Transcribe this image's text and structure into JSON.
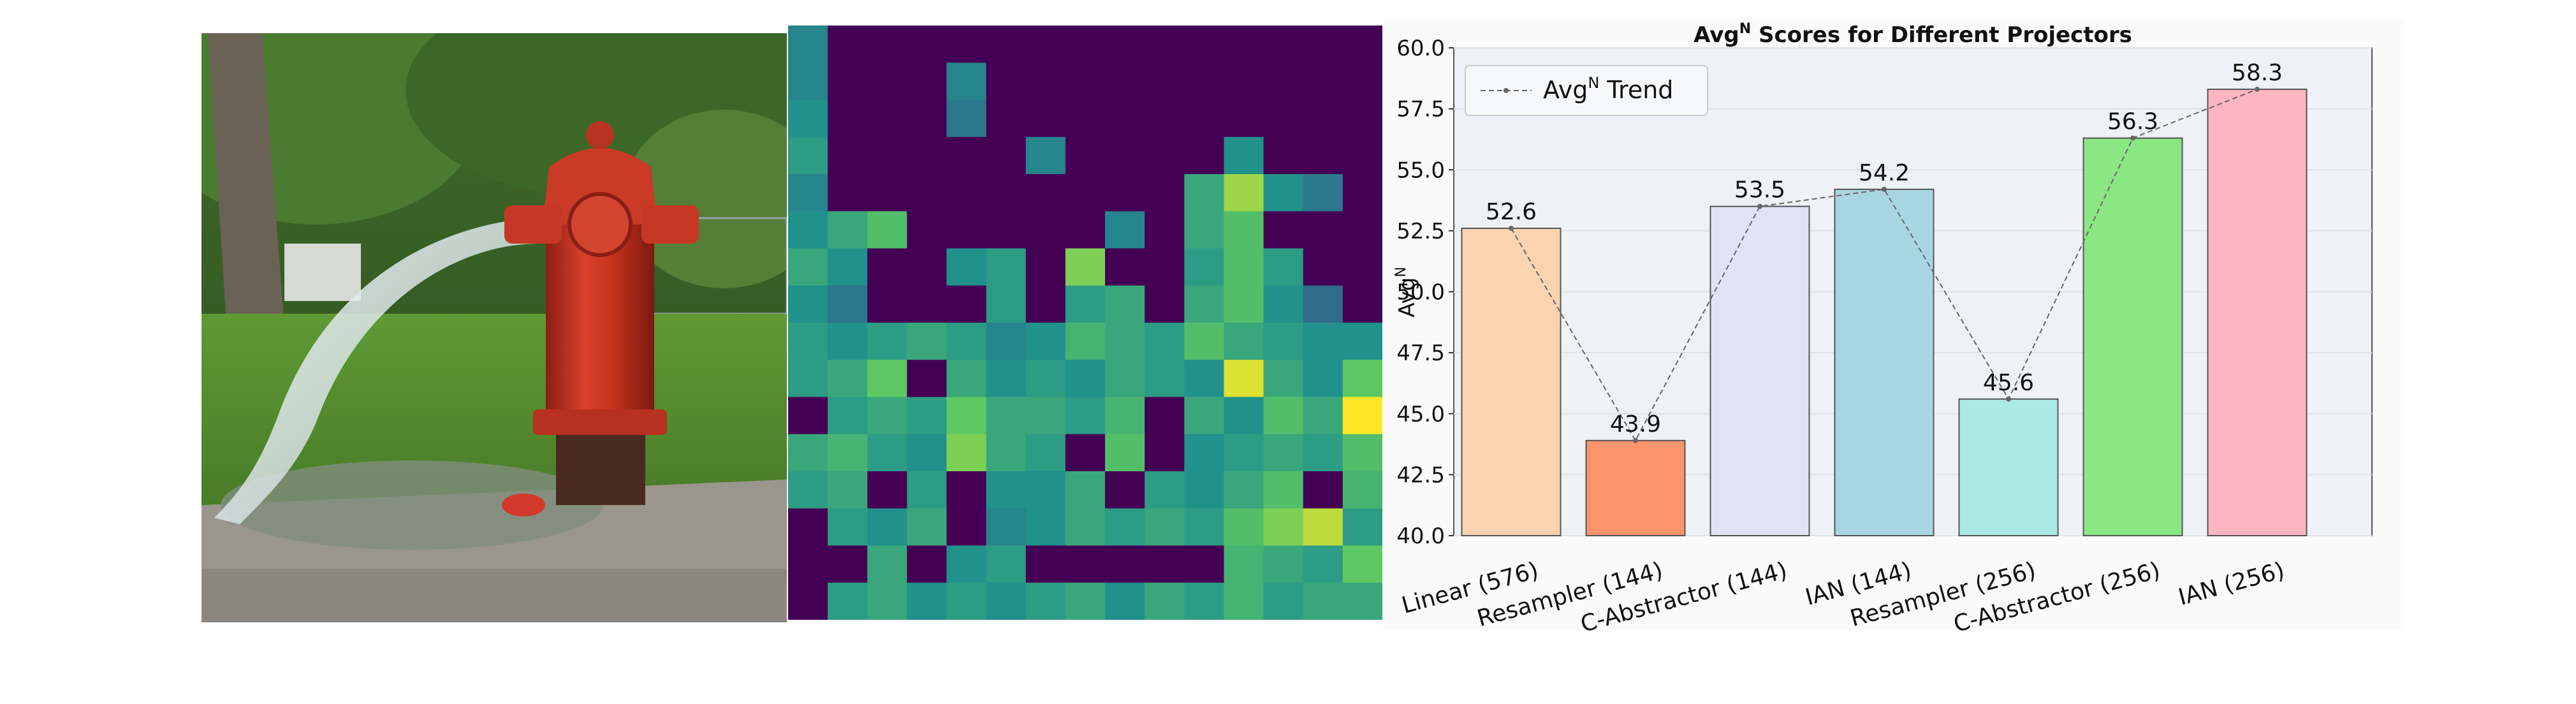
{
  "figure": {
    "photo": {
      "subject": "red fire hydrant spraying water on a lawn"
    },
    "heatmap": {
      "rows": 16,
      "cols": 15,
      "colormap": "viridis",
      "values": [
        [
          0.45,
          0,
          0,
          0,
          0,
          0,
          0,
          0,
          0,
          0,
          0,
          0,
          0,
          0,
          0
        ],
        [
          0.45,
          0,
          0,
          0,
          0.45,
          0,
          0,
          0,
          0,
          0,
          0,
          0,
          0,
          0,
          0
        ],
        [
          0.5,
          0,
          0,
          0,
          0.4,
          0,
          0,
          0,
          0,
          0,
          0,
          0,
          0,
          0,
          0
        ],
        [
          0.55,
          0,
          0,
          0,
          0,
          0,
          0.45,
          0,
          0,
          0,
          0,
          0.5,
          0,
          0,
          0
        ],
        [
          0.45,
          0,
          0,
          0,
          0,
          0,
          0,
          0,
          0,
          0,
          0.6,
          0.85,
          0.5,
          0.4,
          0
        ],
        [
          0.5,
          0.6,
          0.7,
          0,
          0,
          0,
          0,
          0,
          0.45,
          0,
          0.6,
          0.7,
          0,
          0,
          0
        ],
        [
          0.6,
          0.5,
          0,
          0,
          0.5,
          0.55,
          0,
          0.8,
          0,
          0,
          0.55,
          0.7,
          0.55,
          0,
          0
        ],
        [
          0.5,
          0.4,
          0,
          0,
          0,
          0.55,
          0,
          0.55,
          0.6,
          0,
          0.6,
          0.7,
          0.5,
          0.35,
          0
        ],
        [
          0.55,
          0.5,
          0.55,
          0.6,
          0.55,
          0.45,
          0.5,
          0.65,
          0.6,
          0.55,
          0.7,
          0.6,
          0.55,
          0.5,
          0.5
        ],
        [
          0.55,
          0.6,
          0.75,
          0,
          0.6,
          0.5,
          0.55,
          0.5,
          0.6,
          0.55,
          0.5,
          0.95,
          0.6,
          0.5,
          0.75
        ],
        [
          0,
          0.55,
          0.6,
          0.55,
          0.75,
          0.6,
          0.6,
          0.55,
          0.65,
          0,
          0.6,
          0.5,
          0.7,
          0.6,
          1.0
        ],
        [
          0.6,
          0.65,
          0.55,
          0.5,
          0.8,
          0.6,
          0.55,
          0,
          0.7,
          0,
          0.5,
          0.55,
          0.6,
          0.55,
          0.7
        ],
        [
          0.55,
          0.6,
          0,
          0.55,
          0,
          0.5,
          0.5,
          0.6,
          0,
          0.55,
          0.5,
          0.6,
          0.7,
          0,
          0.65
        ],
        [
          0,
          0.55,
          0.5,
          0.6,
          0,
          0.45,
          0.5,
          0.6,
          0.55,
          0.6,
          0.55,
          0.7,
          0.8,
          0.9,
          0.55
        ],
        [
          0,
          0,
          0.6,
          0,
          0.5,
          0.55,
          0,
          0,
          0,
          0,
          0,
          0.65,
          0.6,
          0.55,
          0.75
        ],
        [
          0,
          0.55,
          0.6,
          0.5,
          0.55,
          0.5,
          0.55,
          0.6,
          0.5,
          0.6,
          0.55,
          0.65,
          0.55,
          0.6,
          0.6
        ]
      ]
    }
  },
  "chart_data": {
    "type": "bar",
    "title": "Avg",
    "title_sup": "N",
    "title_rest": " Scores for Different Projectors",
    "ylabel": "Avg",
    "ylabel_sup": "N",
    "xlabel": "",
    "categories": [
      "Linear (576)",
      "Resampler (144)",
      "C-Abstractor (144)",
      "IAN (144)",
      "Resampler (256)",
      "C-Abstractor (256)",
      "IAN (256)"
    ],
    "values": [
      52.6,
      43.9,
      53.5,
      54.2,
      45.6,
      56.3,
      58.3
    ],
    "value_labels": [
      "52.6",
      "43.9",
      "53.5",
      "54.2",
      "45.6",
      "56.3",
      "58.3"
    ],
    "bar_colors": [
      "#fbd3b0",
      "#f9946c",
      "#e3e1f5",
      "#a7d6e2",
      "#abe9e5",
      "#8ae783",
      "#fbb5c0"
    ],
    "ylim": [
      40.0,
      60.0
    ],
    "yticks": [
      "40.0",
      "42.5",
      "45.0",
      "47.5",
      "50.0",
      "52.5",
      "55.0",
      "57.5",
      "60.0"
    ],
    "grid": true,
    "legend": {
      "position": "top-left",
      "label": "Avg",
      "label_sup": "N",
      "label_rest": " Trend"
    },
    "colors": {
      "background": "#eef1f5",
      "trend": "#666666",
      "grid": "#ffffff"
    }
  }
}
